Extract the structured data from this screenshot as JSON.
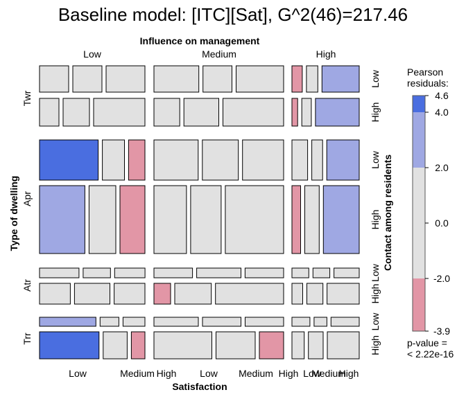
{
  "chart_data": {
    "type": "mosaic",
    "title": "Baseline model: [ITC][Sat], G^2(46)=217.46",
    "top_axis_title": "Influence on management",
    "influence_levels": [
      "Low",
      "Medium",
      "High"
    ],
    "left_axis_title": "Type of dwelling",
    "dwelling_levels": [
      "Twr",
      "Apr",
      "Atr",
      "Trr"
    ],
    "right_axis_title": "Contact among residents",
    "contact_levels": [
      "Low",
      "High"
    ],
    "bottom_axis_title": "Satisfaction",
    "satisfaction_levels": [
      "Low",
      "Medium",
      "High"
    ],
    "legend": {
      "title_line1": "Pearson",
      "title_line2": "residuals:",
      "tick_labels": [
        "4.6",
        "4.0",
        "2.0",
        "0.0",
        "-2.0",
        "-3.9"
      ],
      "breaks": [
        4.6,
        4.0,
        2.0,
        0.0,
        -2.0,
        -3.9
      ],
      "colors": {
        "strong_pos": "#4a6ee0",
        "pos": "#9fa8e3",
        "neutral": "#e1e1e1",
        "neg": "#e296a6"
      }
    },
    "p_value_line1": "p-value =",
    "p_value_line2": "< 2.22e-16",
    "cells": [
      {
        "dwelling": "Twr",
        "contact": "Low",
        "influence": "Low",
        "values": [
          21,
          21,
          28
        ],
        "residual_class": [
          "neutral",
          "neutral",
          "neutral"
        ]
      },
      {
        "dwelling": "Twr",
        "contact": "Low",
        "influence": "Medium",
        "values": [
          34,
          22,
          36
        ],
        "residual_class": [
          "neutral",
          "neutral",
          "neutral"
        ]
      },
      {
        "dwelling": "Twr",
        "contact": "Low",
        "influence": "High",
        "values": [
          10,
          11,
          36
        ],
        "residual_class": [
          "neg",
          "neutral",
          "pos"
        ]
      },
      {
        "dwelling": "Twr",
        "contact": "High",
        "influence": "Low",
        "values": [
          14,
          19,
          37
        ],
        "residual_class": [
          "neutral",
          "neutral",
          "neutral"
        ]
      },
      {
        "dwelling": "Twr",
        "contact": "High",
        "influence": "Medium",
        "values": [
          17,
          23,
          40
        ],
        "residual_class": [
          "neutral",
          "neutral",
          "neutral"
        ]
      },
      {
        "dwelling": "Twr",
        "contact": "High",
        "influence": "High",
        "values": [
          3,
          5,
          23
        ],
        "residual_class": [
          "neg",
          "neutral",
          "pos"
        ]
      },
      {
        "dwelling": "Apr",
        "contact": "Low",
        "influence": "Low",
        "values": [
          61,
          23,
          17
        ],
        "residual_class": [
          "strong_pos",
          "neutral",
          "neg"
        ]
      },
      {
        "dwelling": "Apr",
        "contact": "Low",
        "influence": "Medium",
        "values": [
          43,
          35,
          40
        ],
        "residual_class": [
          "neutral",
          "neutral",
          "neutral"
        ]
      },
      {
        "dwelling": "Apr",
        "contact": "Low",
        "influence": "High",
        "values": [
          26,
          18,
          54
        ],
        "residual_class": [
          "neutral",
          "neutral",
          "pos"
        ]
      },
      {
        "dwelling": "Apr",
        "contact": "High",
        "influence": "Low",
        "values": [
          78,
          46,
          43
        ],
        "residual_class": [
          "pos",
          "neutral",
          "neg"
        ]
      },
      {
        "dwelling": "Apr",
        "contact": "High",
        "influence": "Medium",
        "values": [
          48,
          45,
          86
        ],
        "residual_class": [
          "neutral",
          "neutral",
          "neutral"
        ]
      },
      {
        "dwelling": "Apr",
        "contact": "High",
        "influence": "High",
        "values": [
          15,
          25,
          62
        ],
        "residual_class": [
          "neg",
          "neutral",
          "pos"
        ]
      },
      {
        "dwelling": "Atr",
        "contact": "Low",
        "influence": "Low",
        "values": [
          13,
          9,
          10
        ],
        "residual_class": [
          "neutral",
          "neutral",
          "neutral"
        ]
      },
      {
        "dwelling": "Atr",
        "contact": "Low",
        "influence": "Medium",
        "values": [
          20,
          23,
          20
        ],
        "residual_class": [
          "neutral",
          "neutral",
          "neutral"
        ]
      },
      {
        "dwelling": "Atr",
        "contact": "Low",
        "influence": "High",
        "values": [
          8,
          8,
          12
        ],
        "residual_class": [
          "neutral",
          "neutral",
          "neutral"
        ]
      },
      {
        "dwelling": "Atr",
        "contact": "High",
        "influence": "Low",
        "values": [
          20,
          23,
          20
        ],
        "residual_class": [
          "neutral",
          "neutral",
          "neutral"
        ]
      },
      {
        "dwelling": "Atr",
        "contact": "High",
        "influence": "Medium",
        "values": [
          10,
          22,
          41
        ],
        "residual_class": [
          "neg",
          "neutral",
          "neutral"
        ]
      },
      {
        "dwelling": "Atr",
        "contact": "High",
        "influence": "High",
        "values": [
          6,
          9,
          18
        ],
        "residual_class": [
          "neutral",
          "neutral",
          "neutral"
        ]
      },
      {
        "dwelling": "Trr",
        "contact": "Low",
        "influence": "Low",
        "values": [
          18,
          6,
          7
        ],
        "residual_class": [
          "pos",
          "neutral",
          "neutral"
        ]
      },
      {
        "dwelling": "Trr",
        "contact": "Low",
        "influence": "Medium",
        "values": [
          15,
          13,
          13
        ],
        "residual_class": [
          "neutral",
          "neutral",
          "neutral"
        ]
      },
      {
        "dwelling": "Trr",
        "contact": "Low",
        "influence": "High",
        "values": [
          7,
          5,
          11
        ],
        "residual_class": [
          "neutral",
          "neutral",
          "neutral"
        ]
      },
      {
        "dwelling": "Trr",
        "contact": "High",
        "influence": "Low",
        "values": [
          57,
          23,
          13
        ],
        "residual_class": [
          "strong_pos",
          "neutral",
          "neg"
        ]
      },
      {
        "dwelling": "Trr",
        "contact": "High",
        "influence": "Medium",
        "values": [
          31,
          21,
          13
        ],
        "residual_class": [
          "neutral",
          "neutral",
          "neg"
        ]
      },
      {
        "dwelling": "Trr",
        "contact": "High",
        "influence": "High",
        "values": [
          5,
          6,
          13
        ],
        "residual_class": [
          "neutral",
          "neutral",
          "neutral"
        ]
      }
    ]
  }
}
